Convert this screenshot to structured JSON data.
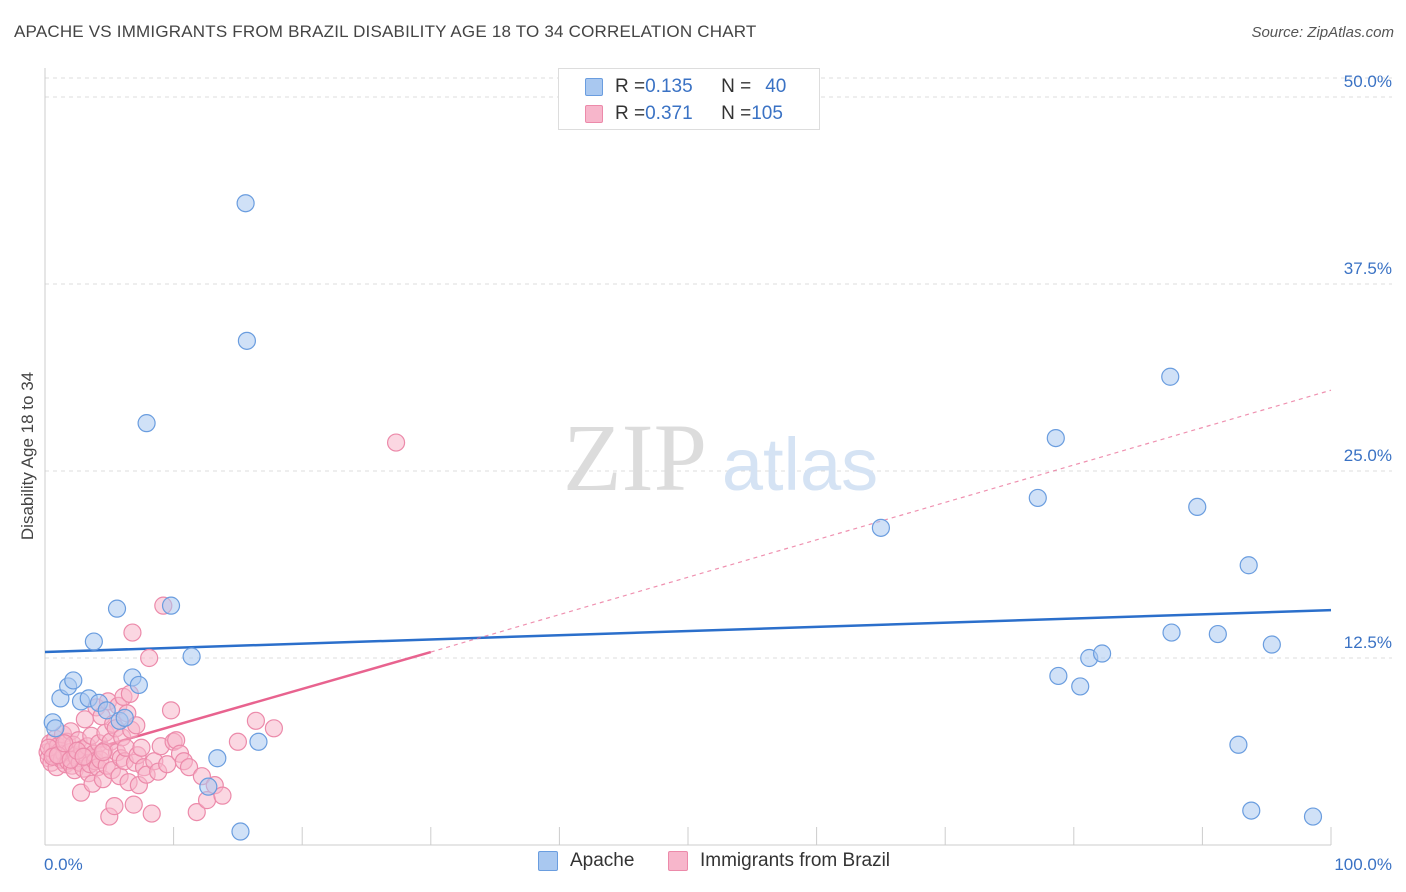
{
  "header": {
    "title": "APACHE VS IMMIGRANTS FROM BRAZIL DISABILITY AGE 18 TO 34 CORRELATION CHART",
    "source": "Source: ZipAtlas.com"
  },
  "watermark": {
    "zip": "ZIP",
    "atlas": "atlas"
  },
  "legend_top": {
    "rows": [
      {
        "r_label": "R = ",
        "r_value": "0.135",
        "n_label": "N = ",
        "n_value": "40"
      },
      {
        "r_label": "R = ",
        "r_value": "0.371",
        "n_label": "N = ",
        "n_value": "105"
      }
    ]
  },
  "colors": {
    "apache_fill": "#a9c8f0",
    "apache_stroke": "#6a9ddf",
    "apache_line": "#2b6fcb",
    "brazil_fill": "#f7b6cb",
    "brazil_stroke": "#ec8aaa",
    "brazil_line": "#e8638f",
    "axis_label": "#3a72c4",
    "grid": "#dddddd"
  },
  "chart_data": {
    "type": "scatter",
    "title": "APACHE VS IMMIGRANTS FROM BRAZIL DISABILITY AGE 18 TO 34 CORRELATION CHART",
    "xlabel": "",
    "ylabel": "Disability Age 18 to 34",
    "xlim": [
      0,
      100
    ],
    "ylim": [
      0,
      50
    ],
    "x_tick_labels": [
      "0.0%",
      "100.0%"
    ],
    "y_ticks": [
      12.5,
      25.0,
      37.5,
      50.0
    ],
    "y_tick_labels": [
      "12.5%",
      "25.0%",
      "37.5%",
      "50.0%"
    ],
    "grid": true,
    "legend_position": "top-center",
    "series": [
      {
        "name": "Apache",
        "R": 0.135,
        "N": 40,
        "trend": {
          "x": [
            0,
            100
          ],
          "y": [
            12.9,
            15.7
          ],
          "style": "solid"
        },
        "points": [
          [
            0.6,
            8.2
          ],
          [
            0.8,
            7.8
          ],
          [
            1.2,
            9.8
          ],
          [
            1.8,
            10.6
          ],
          [
            2.2,
            11.0
          ],
          [
            2.8,
            9.6
          ],
          [
            3.4,
            9.8
          ],
          [
            3.8,
            13.6
          ],
          [
            4.2,
            9.5
          ],
          [
            4.8,
            9.0
          ],
          [
            5.8,
            8.3
          ],
          [
            5.6,
            15.8
          ],
          [
            6.2,
            8.5
          ],
          [
            6.8,
            11.2
          ],
          [
            7.3,
            10.7
          ],
          [
            7.9,
            28.2
          ],
          [
            9.8,
            16.0
          ],
          [
            11.4,
            12.6
          ],
          [
            12.7,
            3.9
          ],
          [
            13.4,
            5.8
          ],
          [
            15.2,
            0.9
          ],
          [
            15.6,
            42.9
          ],
          [
            15.7,
            33.7
          ],
          [
            16.6,
            6.9
          ],
          [
            65.0,
            21.2
          ],
          [
            77.2,
            23.2
          ],
          [
            78.6,
            27.2
          ],
          [
            78.8,
            11.3
          ],
          [
            80.5,
            10.6
          ],
          [
            81.2,
            12.5
          ],
          [
            82.2,
            12.8
          ],
          [
            87.5,
            31.3
          ],
          [
            87.6,
            14.2
          ],
          [
            89.6,
            22.6
          ],
          [
            91.2,
            14.1
          ],
          [
            92.8,
            6.7
          ],
          [
            93.6,
            18.7
          ],
          [
            93.8,
            2.3
          ],
          [
            95.4,
            13.4
          ],
          [
            98.6,
            1.9
          ]
        ]
      },
      {
        "name": "Immigrants from Brazil",
        "R": 0.371,
        "N": 105,
        "trend": {
          "x": [
            0,
            30
          ],
          "y": [
            5.5,
            12.9
          ],
          "style": "solid",
          "extended": {
            "x": [
              30,
              100
            ],
            "y": [
              12.9,
              30.4
            ],
            "style": "dashed"
          }
        },
        "points": [
          [
            0.2,
            6.2
          ],
          [
            0.3,
            5.8
          ],
          [
            0.4,
            6.8
          ],
          [
            0.5,
            5.5
          ],
          [
            0.6,
            6.4
          ],
          [
            0.7,
            6.0
          ],
          [
            0.8,
            7.1
          ],
          [
            0.9,
            5.2
          ],
          [
            1.0,
            6.6
          ],
          [
            1.1,
            5.9
          ],
          [
            1.2,
            6.3
          ],
          [
            1.3,
            5.7
          ],
          [
            1.4,
            7.4
          ],
          [
            1.5,
            6.1
          ],
          [
            1.6,
            5.4
          ],
          [
            1.7,
            6.9
          ],
          [
            1.8,
            5.6
          ],
          [
            1.9,
            6.2
          ],
          [
            2.0,
            7.6
          ],
          [
            2.1,
            5.3
          ],
          [
            2.2,
            6.7
          ],
          [
            2.3,
            5.0
          ],
          [
            2.4,
            6.0
          ],
          [
            2.5,
            5.8
          ],
          [
            2.6,
            7.0
          ],
          [
            2.7,
            5.5
          ],
          [
            2.8,
            3.5
          ],
          [
            2.9,
            6.4
          ],
          [
            3.0,
            5.1
          ],
          [
            3.1,
            8.4
          ],
          [
            3.2,
            5.9
          ],
          [
            3.3,
            6.6
          ],
          [
            3.4,
            4.8
          ],
          [
            3.5,
            5.4
          ],
          [
            3.6,
            7.3
          ],
          [
            3.7,
            4.1
          ],
          [
            3.8,
            6.1
          ],
          [
            3.9,
            5.6
          ],
          [
            4.0,
            9.2
          ],
          [
            4.1,
            5.2
          ],
          [
            4.2,
            6.8
          ],
          [
            4.3,
            5.7
          ],
          [
            4.4,
            8.6
          ],
          [
            4.5,
            4.4
          ],
          [
            4.6,
            6.3
          ],
          [
            4.7,
            7.5
          ],
          [
            4.8,
            5.3
          ],
          [
            4.9,
            9.6
          ],
          [
            5.0,
            1.9
          ],
          [
            5.1,
            6.9
          ],
          [
            5.2,
            5.0
          ],
          [
            5.3,
            8.1
          ],
          [
            5.4,
            2.6
          ],
          [
            5.5,
            7.8
          ],
          [
            5.6,
            6.2
          ],
          [
            5.7,
            9.3
          ],
          [
            5.8,
            4.6
          ],
          [
            5.9,
            5.8
          ],
          [
            6.0,
            7.2
          ],
          [
            6.1,
            9.9
          ],
          [
            6.2,
            5.6
          ],
          [
            6.3,
            6.5
          ],
          [
            6.4,
            8.8
          ],
          [
            6.5,
            4.2
          ],
          [
            6.6,
            10.1
          ],
          [
            6.7,
            7.7
          ],
          [
            6.8,
            14.2
          ],
          [
            6.9,
            2.7
          ],
          [
            7.0,
            5.5
          ],
          [
            7.1,
            8.0
          ],
          [
            7.2,
            6.0
          ],
          [
            7.3,
            4.0
          ],
          [
            7.5,
            6.5
          ],
          [
            7.7,
            5.2
          ],
          [
            7.9,
            4.7
          ],
          [
            8.1,
            12.5
          ],
          [
            8.3,
            2.1
          ],
          [
            8.5,
            5.6
          ],
          [
            8.8,
            4.9
          ],
          [
            9.0,
            6.6
          ],
          [
            9.2,
            16.0
          ],
          [
            9.5,
            5.4
          ],
          [
            9.8,
            9.0
          ],
          [
            10.0,
            6.9
          ],
          [
            10.2,
            7.0
          ],
          [
            10.5,
            6.1
          ],
          [
            10.8,
            5.6
          ],
          [
            11.2,
            5.2
          ],
          [
            11.8,
            2.2
          ],
          [
            12.2,
            4.6
          ],
          [
            12.6,
            3.0
          ],
          [
            13.2,
            4.0
          ],
          [
            13.8,
            3.3
          ],
          [
            15.0,
            6.9
          ],
          [
            16.4,
            8.3
          ],
          [
            17.8,
            7.8
          ],
          [
            27.3,
            26.9
          ],
          [
            0.3,
            6.5
          ],
          [
            0.6,
            5.9
          ],
          [
            1.0,
            6.0
          ],
          [
            1.5,
            6.8
          ],
          [
            2.0,
            5.7
          ],
          [
            2.5,
            6.3
          ],
          [
            3.0,
            5.9
          ],
          [
            4.5,
            6.2
          ]
        ]
      }
    ]
  },
  "legend_bottom": {
    "items": [
      {
        "label": "Apache"
      },
      {
        "label": "Immigrants from Brazil"
      }
    ]
  }
}
